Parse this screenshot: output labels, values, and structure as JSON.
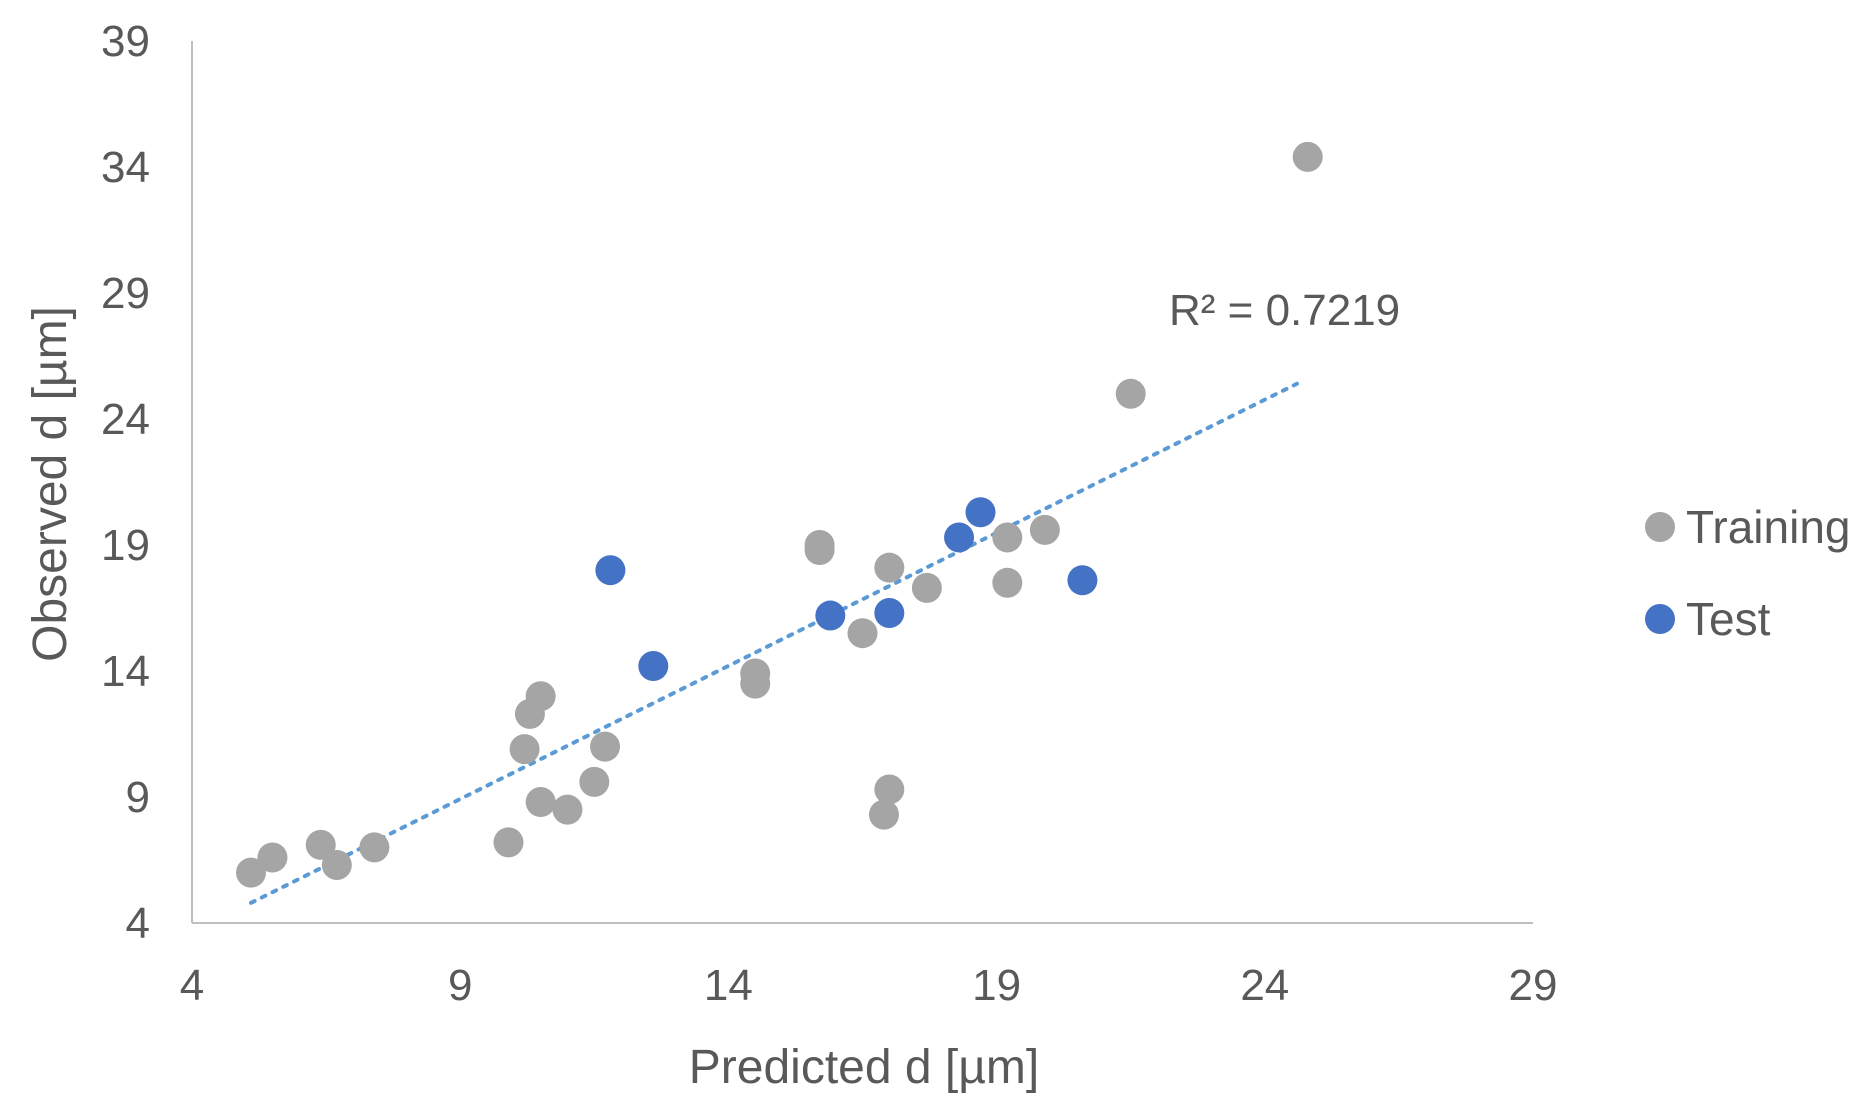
{
  "chart_data": {
    "type": "scatter",
    "title": "",
    "xlabel": "Predicted d [µm]",
    "ylabel": "Observed d [µm]",
    "xlim": [
      4,
      29
    ],
    "ylim": [
      4,
      39
    ],
    "xticks": [
      4,
      9,
      14,
      19,
      24,
      29
    ],
    "yticks": [
      4,
      9,
      14,
      19,
      24,
      29,
      34,
      39
    ],
    "grid": false,
    "legend_position": "right",
    "series": [
      {
        "name": "Training",
        "color": "#a5a5a5",
        "points": [
          [
            5.1,
            6.0
          ],
          [
            5.5,
            6.6
          ],
          [
            6.4,
            7.1
          ],
          [
            6.7,
            6.3
          ],
          [
            7.4,
            7.0
          ],
          [
            9.9,
            7.2
          ],
          [
            10.2,
            10.9
          ],
          [
            10.3,
            12.3
          ],
          [
            10.5,
            13.0
          ],
          [
            10.5,
            8.8
          ],
          [
            11.0,
            8.5
          ],
          [
            11.5,
            9.6
          ],
          [
            11.7,
            11.0
          ],
          [
            14.5,
            13.9
          ],
          [
            14.5,
            13.5
          ],
          [
            15.7,
            19.0
          ],
          [
            15.7,
            18.8
          ],
          [
            16.5,
            15.5
          ],
          [
            17.0,
            18.1
          ],
          [
            17.0,
            9.3
          ],
          [
            16.9,
            8.3
          ],
          [
            17.7,
            17.3
          ],
          [
            19.2,
            19.3
          ],
          [
            19.2,
            17.5
          ],
          [
            19.9,
            19.6
          ],
          [
            21.5,
            25.0
          ],
          [
            24.8,
            34.4
          ]
        ]
      },
      {
        "name": "Test",
        "color": "#4472c4",
        "points": [
          [
            11.8,
            18.0
          ],
          [
            12.6,
            14.2
          ],
          [
            15.9,
            16.2
          ],
          [
            17.0,
            16.3
          ],
          [
            18.3,
            19.3
          ],
          [
            18.7,
            20.3
          ],
          [
            20.6,
            17.6
          ]
        ]
      }
    ],
    "trendline": {
      "type": "linear",
      "style": "dotted",
      "color": "#5b9bd5",
      "x_range": [
        5.1,
        24.6
      ],
      "y_range": [
        4.8,
        25.4
      ],
      "label": "R² = 0.7219"
    }
  }
}
